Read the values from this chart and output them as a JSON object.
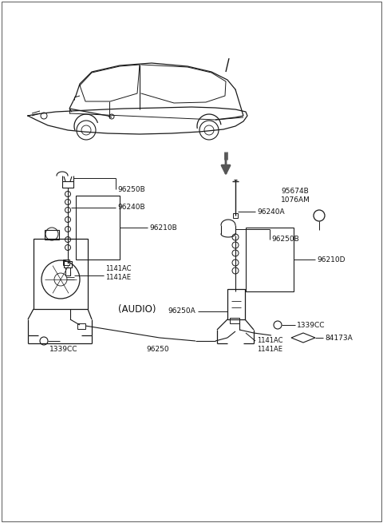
{
  "bg_color": "#ffffff",
  "fig_width": 4.8,
  "fig_height": 6.55,
  "dpi": 100,
  "lc": "#1a1a1a",
  "tc": "#111111",
  "labels": {
    "96250B_left": "96250B",
    "96240B": "96240B",
    "96210B": "96210B",
    "1141AC_left": "1141AC\n1141AE",
    "audio": "(AUDIO)",
    "1339CC_left": "1339CC",
    "96250": "96250",
    "96250A": "96250A",
    "96240A": "96240A",
    "95674B": "95674B\n1076AM",
    "96250B_right": "96250B",
    "96210D": "96210D",
    "1339CC_right": "1339CC",
    "84173A": "84173A",
    "1141AC_right": "1141AC\n1141AE"
  }
}
